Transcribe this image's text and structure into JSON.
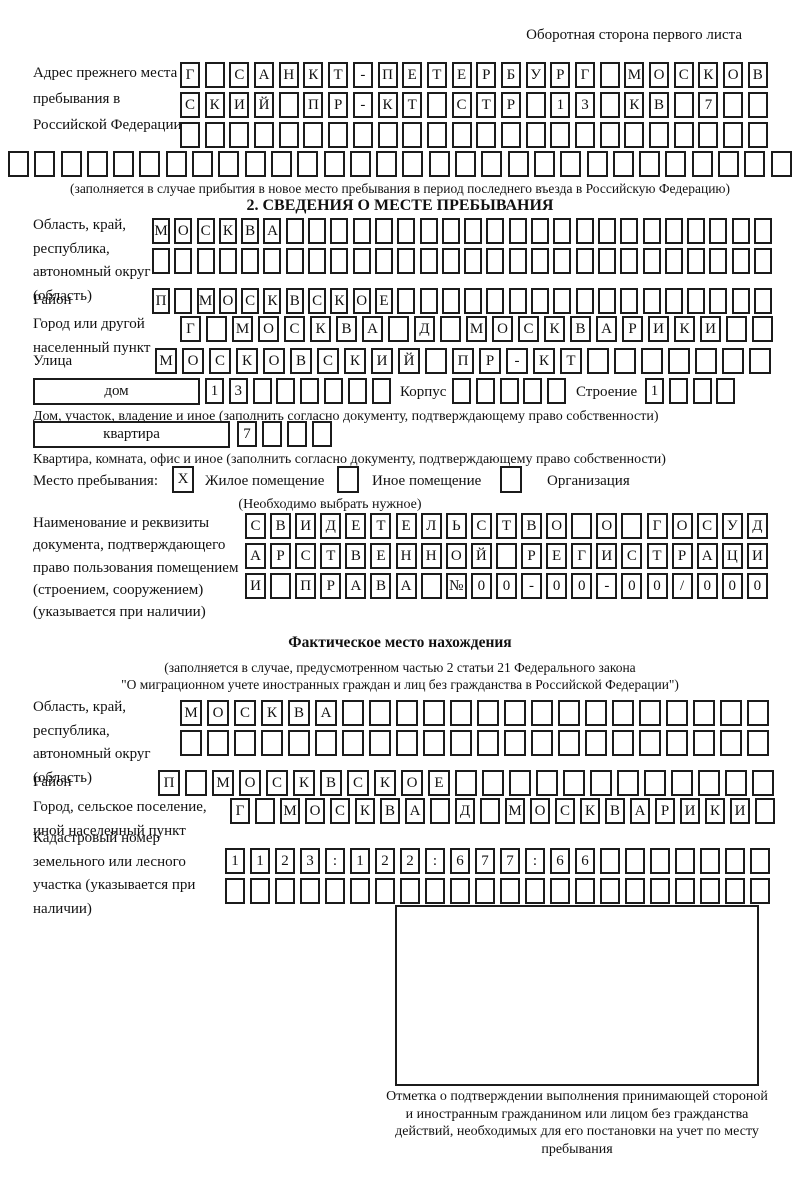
{
  "page": {
    "side_note": "Оборотная сторона первого листа"
  },
  "prev_address": {
    "label": "Адрес прежнего места пребывания в Российской Федерации",
    "row1": {
      "chars": "Г САНКТ-ПЕТЕРБУРГ МОСКОВ",
      "len": 24
    },
    "row2": {
      "chars": "СКИЙ ПР-КТ СТР 13 КВ 7",
      "len": 24
    },
    "row3": {
      "chars": "",
      "len": 24
    },
    "row4": {
      "chars": "",
      "len": 30
    },
    "note": "(заполняется в случае прибытия в новое место пребывания в период последнего въезда в Российскую Федерацию)"
  },
  "section2": {
    "title": "2. СВЕДЕНИЯ О МЕСТЕ ПРЕБЫВАНИЯ",
    "region": {
      "label": "Область, край, республика, автономный округ (область)",
      "row1": {
        "chars": "МОСКВА",
        "len": 28
      },
      "row2": {
        "chars": "",
        "len": 28
      }
    },
    "district": {
      "label": "Район",
      "row": {
        "chars": "П МОСКВСКОЕ",
        "len": 28
      }
    },
    "city": {
      "label": "Город или другой населенный пункт",
      "row": {
        "chars": "Г МОСКВА Д МОСКВАРИКИ",
        "len": 23
      }
    },
    "street": {
      "label": "Улица",
      "row": {
        "chars": "МОСКОВСКИЙ ПР-КТ",
        "len": 23
      }
    },
    "house": {
      "box_label": "дом",
      "row": {
        "chars": "13",
        "len": 8
      },
      "korpus_label": "Корпус",
      "korpus_row": {
        "chars": "",
        "len": 5
      },
      "stroenie_label": "Строение",
      "stroenie_row": {
        "chars": "1",
        "len": 4
      },
      "note": "Дом, участок, владение и иное (заполнить согласно документу, подтверждающему право собственности)"
    },
    "apartment": {
      "box_label": "квартира",
      "row": {
        "chars": "7",
        "len": 4
      },
      "note": "Квартира, комната, офис и иное (заполнить согласно документу, подтверждающему право собственности)"
    },
    "stay_type": {
      "label": "Место пребывания:",
      "options": [
        {
          "label": "Жилое помещение",
          "checked": "X"
        },
        {
          "label": "Иное помещение",
          "checked": ""
        },
        {
          "label": "Организация",
          "checked": ""
        }
      ],
      "note": "(Необходимо выбрать нужное)"
    },
    "document": {
      "label": "Наименование и реквизиты документа, подтверждающего право пользования помещением (строением, сооружением) (указывается при наличии)",
      "row1": {
        "chars": "СВИДЕТЕЛЬСТВО О ГОСУД",
        "len": 21
      },
      "row2": {
        "chars": "АРСТВЕННОЙ РЕГИСТРАЦИ",
        "len": 21
      },
      "row3": {
        "chars": "И ПРАВА №00-00-00/000",
        "len": 21
      }
    }
  },
  "actual_location": {
    "title": "Фактическое место нахождения",
    "note1": "(заполняется в случае, предусмотренном частью 2 статьи 21 Федерального закона",
    "note2": "\"О миграционном учете иностранных граждан и лиц без гражданства в Российской Федерации\")",
    "region": {
      "label": "Область, край, республика, автономный округ (область)",
      "row1": {
        "chars": "МОСКВА",
        "len": 22
      },
      "row2": {
        "chars": "",
        "len": 22
      }
    },
    "district": {
      "label": "Район",
      "row": {
        "chars": "П МОСКВСКОЕ",
        "len": 23
      }
    },
    "city": {
      "label": "Город, сельское поселение, иной населенный пункт",
      "row": {
        "chars": "Г МОСКВА Д МОСКВАРИКИ",
        "len": 22
      }
    },
    "cadastral": {
      "label": "Кадастровый номер земельного или лесного участка (указывается при наличии)",
      "row1": {
        "chars": "1123:122:677:66",
        "len": 22
      },
      "row2": {
        "chars": "",
        "len": 22
      }
    },
    "stamp_note": "Отметка о подтверждении выполнения принимающей стороной и иностранным гражданином или лицом без гражданства действий, необходимых для его постановки на учет по месту пребывания"
  }
}
